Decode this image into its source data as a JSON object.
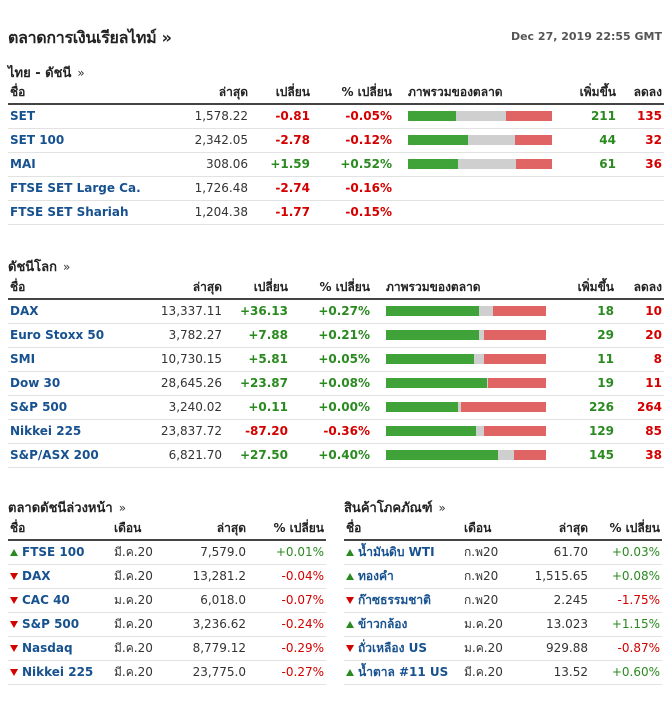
{
  "header": {
    "title": "ตลาดการเงินเรียลไทม์ »",
    "timestamp": "Dec 27, 2019 22:55 GMT"
  },
  "colors": {
    "up": "#2a8a1f",
    "down": "#d40000",
    "link": "#17518f",
    "bar_up": "#3fa33a",
    "bar_flat": "#cfcfcf",
    "bar_down": "#e06464"
  },
  "thai": {
    "heading": "ไทย - ดัชนี",
    "chevron": "»",
    "columns": [
      "ชื่อ",
      "ล่าสุด",
      "เปลี่ยน",
      "% เปลี่ยน",
      "ภาพรวมของตลาด",
      "เพิ่มขึ้น",
      "ลดลง"
    ],
    "rows": [
      {
        "name": "SET",
        "last": "1,578.22",
        "chg": "-0.81",
        "pct": "-0.05%",
        "up": "211",
        "down": "135",
        "bar": [
          0.33,
          0.35,
          0.32
        ]
      },
      {
        "name": "SET 100",
        "last": "2,342.05",
        "chg": "-2.78",
        "pct": "-0.12%",
        "up": "44",
        "down": "32",
        "bar": [
          0.42,
          0.32,
          0.26
        ]
      },
      {
        "name": "MAI",
        "last": "308.06",
        "chg": "+1.59",
        "pct": "+0.52%",
        "up": "61",
        "down": "36",
        "bar": [
          0.35,
          0.4,
          0.25
        ]
      },
      {
        "name": "FTSE SET Large Ca.",
        "last": "1,726.48",
        "chg": "-2.74",
        "pct": "-0.16%",
        "up": "",
        "down": "",
        "bar": null
      },
      {
        "name": "FTSE SET Shariah",
        "last": "1,204.38",
        "chg": "-1.77",
        "pct": "-0.15%",
        "up": "",
        "down": "",
        "bar": null
      }
    ]
  },
  "world": {
    "heading": "ดัชนีโลก",
    "chevron": "»",
    "columns": [
      "ชื่อ",
      "ล่าสุด",
      "เปลี่ยน",
      "% เปลี่ยน",
      "ภาพรวมของตลาด",
      "เพิ่มขึ้น",
      "ลดลง"
    ],
    "rows": [
      {
        "name": "DAX",
        "last": "13,337.11",
        "chg": "+36.13",
        "pct": "+0.27%",
        "up": "18",
        "down": "10",
        "bar": [
          0.58,
          0.09,
          0.33
        ]
      },
      {
        "name": "Euro Stoxx 50",
        "last": "3,782.27",
        "chg": "+7.88",
        "pct": "+0.21%",
        "up": "29",
        "down": "20",
        "bar": [
          0.58,
          0.03,
          0.39
        ]
      },
      {
        "name": "SMI",
        "last": "10,730.15",
        "chg": "+5.81",
        "pct": "+0.05%",
        "up": "11",
        "down": "8",
        "bar": [
          0.55,
          0.06,
          0.39
        ]
      },
      {
        "name": "Dow 30",
        "last": "28,645.26",
        "chg": "+23.87",
        "pct": "+0.08%",
        "up": "19",
        "down": "11",
        "bar": [
          0.63,
          0.01,
          0.36
        ]
      },
      {
        "name": "S&P 500",
        "last": "3,240.02",
        "chg": "+0.11",
        "pct": "+0.00%",
        "up": "226",
        "down": "264",
        "bar": [
          0.45,
          0.02,
          0.53
        ]
      },
      {
        "name": "Nikkei 225",
        "last": "23,837.72",
        "chg": "-87.20",
        "pct": "-0.36%",
        "up": "129",
        "down": "85",
        "bar": [
          0.56,
          0.05,
          0.39
        ]
      },
      {
        "name": "S&P/ASX 200",
        "last": "6,821.70",
        "chg": "+27.50",
        "pct": "+0.40%",
        "up": "145",
        "down": "38",
        "bar": [
          0.7,
          0.1,
          0.2
        ]
      }
    ]
  },
  "futures": {
    "heading": "ตลาดดัชนีล่วงหน้า",
    "chevron": "»",
    "columns": [
      "ชื่อ",
      "เดือน",
      "ล่าสุด",
      "% เปลี่ยน"
    ],
    "rows": [
      {
        "dir": "up",
        "name": "FTSE 100",
        "month": "มี.ค.20",
        "last": "7,579.0",
        "pct": "+0.01%"
      },
      {
        "dir": "down",
        "name": "DAX",
        "month": "มี.ค.20",
        "last": "13,281.2",
        "pct": "-0.04%"
      },
      {
        "dir": "down",
        "name": "CAC 40",
        "month": "ม.ค.20",
        "last": "6,018.0",
        "pct": "-0.07%"
      },
      {
        "dir": "down",
        "name": "S&P 500",
        "month": "มี.ค.20",
        "last": "3,236.62",
        "pct": "-0.24%"
      },
      {
        "dir": "down",
        "name": "Nasdaq",
        "month": "มี.ค.20",
        "last": "8,779.12",
        "pct": "-0.29%"
      },
      {
        "dir": "down",
        "name": "Nikkei 225",
        "month": "มี.ค.20",
        "last": "23,775.0",
        "pct": "-0.27%"
      }
    ]
  },
  "commodities": {
    "heading": "สินค้าโภคภัณฑ์",
    "chevron": "»",
    "columns": [
      "ชื่อ",
      "เดือน",
      "ล่าสุด",
      "% เปลี่ยน"
    ],
    "rows": [
      {
        "dir": "up",
        "name": "น้ำมันดิบ WTI",
        "month": "ก.พ20",
        "last": "61.70",
        "pct": "+0.03%"
      },
      {
        "dir": "up",
        "name": "ทองคำ",
        "month": "ก.พ20",
        "last": "1,515.65",
        "pct": "+0.08%"
      },
      {
        "dir": "down",
        "name": "ก๊าซธรรมชาติ",
        "month": "ก.พ20",
        "last": "2.245",
        "pct": "-1.75%"
      },
      {
        "dir": "up",
        "name": "ข้าวกล้อง",
        "month": "ม.ค.20",
        "last": "13.023",
        "pct": "+1.15%"
      },
      {
        "dir": "down",
        "name": "ถั่วเหลือง US",
        "month": "ม.ค.20",
        "last": "929.88",
        "pct": "-0.87%"
      },
      {
        "dir": "up",
        "name": "น้ำตาล #11 US",
        "month": "มี.ค.20",
        "last": "13.52",
        "pct": "+0.60%"
      }
    ]
  }
}
